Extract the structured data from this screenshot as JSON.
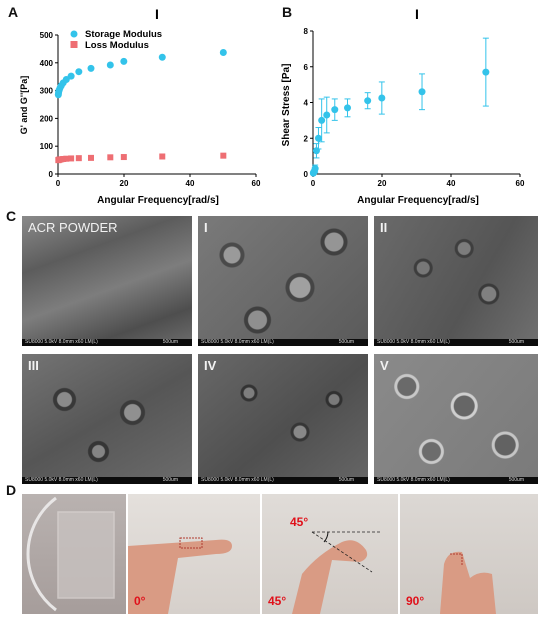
{
  "panels": {
    "a": "A",
    "b": "B",
    "c": "C",
    "d": "D"
  },
  "chart_data": [
    {
      "type": "scatter",
      "title": "I",
      "xlabel": "Angular Frequency[rad/s]",
      "ylabel": "G' and G''[Pa]",
      "xlim": [
        0,
        60
      ],
      "ylim": [
        0,
        500
      ],
      "xticks": [
        "0",
        "20",
        "40",
        "60"
      ],
      "yticks": [
        "0",
        "100",
        "200",
        "300",
        "400",
        "500"
      ],
      "legend": "top-left",
      "series": [
        {
          "name": "Storage Modulus",
          "color": "#33c3ea",
          "marker": "circle",
          "x": [
            0.1,
            0.16,
            0.25,
            0.4,
            0.63,
            1.0,
            1.58,
            2.51,
            3.98,
            6.31,
            10,
            15.85,
            19.95,
            31.6,
            50.1
          ],
          "y": [
            285,
            292,
            298,
            303,
            310,
            318,
            328,
            340,
            352,
            368,
            380,
            392,
            405,
            420,
            437
          ]
        },
        {
          "name": "Loss Modulus",
          "color": "#ee6e73",
          "marker": "square",
          "x": [
            0.1,
            0.16,
            0.25,
            0.4,
            0.63,
            1.0,
            1.58,
            2.51,
            3.98,
            6.31,
            10,
            15.85,
            19.95,
            31.6,
            50.1
          ],
          "y": [
            50,
            50,
            51,
            52,
            52,
            53,
            54,
            55,
            56,
            57,
            58,
            60,
            61,
            63,
            66
          ]
        }
      ]
    },
    {
      "type": "scatter",
      "title": "I",
      "xlabel": "Angular Frequency[rad/s]",
      "ylabel": "Shear Stress [Pa]",
      "xlim": [
        0,
        60
      ],
      "ylim": [
        0,
        8
      ],
      "xticks": [
        "0",
        "20",
        "40",
        "60"
      ],
      "yticks": [
        "0",
        "2",
        "4",
        "6",
        "8"
      ],
      "series": [
        {
          "color": "#33c3ea",
          "x": [
            0.1,
            0.16,
            0.25,
            0.4,
            0.63,
            1.0,
            1.58,
            2.51,
            3.98,
            6.31,
            10,
            15.85,
            19.95,
            31.6,
            50.1
          ],
          "y": [
            0.05,
            0.08,
            0.1,
            0.15,
            0.3,
            1.3,
            2.0,
            3.0,
            3.3,
            3.6,
            3.7,
            4.1,
            4.25,
            4.6,
            5.7
          ],
          "err": [
            0.03,
            0.05,
            0.05,
            0.1,
            0.2,
            0.4,
            0.6,
            1.2,
            1.0,
            0.6,
            0.5,
            0.45,
            0.9,
            1.0,
            1.9
          ]
        }
      ]
    }
  ],
  "sem_images": [
    {
      "label": "ACR POWDER",
      "info": "SU8000 5.0kV 8.0mm x60 LM(L)",
      "scale": "500um"
    },
    {
      "label": "I",
      "info": "SU8000 5.0kV 8.0mm x60 LM(L)",
      "scale": "500um"
    },
    {
      "label": "II",
      "info": "SU8000 5.0kV 8.0mm x60 LM(L)",
      "scale": "500um"
    },
    {
      "label": "III",
      "info": "SU8000 5.0kV 8.0mm x60 LM(L)",
      "scale": "500um"
    },
    {
      "label": "IV",
      "info": "SU8000 5.0kV 8.0mm x60 LM(L)",
      "scale": "500um"
    },
    {
      "label": "V",
      "info": "SU8000 5.0kV 8.0mm x60 LM(L)",
      "scale": "500um"
    }
  ],
  "photos": [
    {
      "angle": ""
    },
    {
      "angle": "0°"
    },
    {
      "angle": "45°",
      "annotation": "45°"
    },
    {
      "angle": "90°"
    }
  ]
}
